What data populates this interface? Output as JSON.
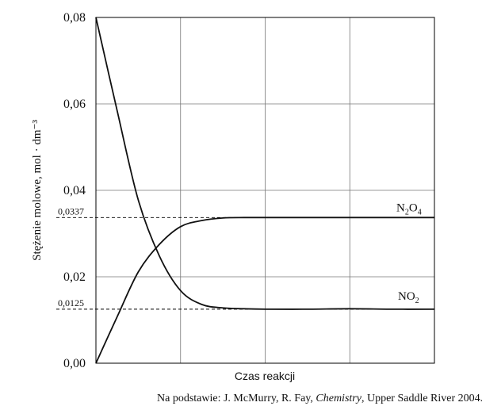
{
  "chart_data": {
    "type": "line",
    "xlabel": "Czas reakcji",
    "ylabel": "Stężenie molowe, mol · dm⁻³",
    "ylim": [
      0,
      0.08
    ],
    "xlim": [
      0,
      8
    ],
    "yticks": [
      "0,00",
      "0,02",
      "0,04",
      "0,06",
      "0,08"
    ],
    "grid": true,
    "reference_lines": [
      {
        "label": "0,0337",
        "value": 0.0337
      },
      {
        "label": "0,0125",
        "value": 0.0125
      }
    ],
    "series": [
      {
        "name": "N2O4",
        "label_main": "N",
        "label_sub1": "2",
        "label_mid": "O",
        "label_sub2": "4",
        "x": [
          0,
          0.5,
          1,
          1.5,
          2,
          2.5,
          3,
          3.5,
          4,
          5,
          6,
          7,
          8
        ],
        "values": [
          0.0,
          0.0107,
          0.0211,
          0.0275,
          0.0316,
          0.033,
          0.0336,
          0.0337,
          0.0337,
          0.0337,
          0.0337,
          0.0337,
          0.0337
        ]
      },
      {
        "name": "NO2",
        "label_main": "NO",
        "label_sub1": "2",
        "x": [
          0,
          0.5,
          1,
          1.5,
          2,
          2.5,
          3,
          3.5,
          4,
          5,
          6,
          7,
          8
        ],
        "values": [
          0.08,
          0.0585,
          0.0378,
          0.0248,
          0.0168,
          0.0136,
          0.0128,
          0.0126,
          0.0125,
          0.0125,
          0.0126,
          0.0125,
          0.0125
        ]
      }
    ]
  },
  "source": {
    "prefix": "Na podstawie: J. McMurry, R. Fay, ",
    "italic": "Chemistry",
    "suffix": ", Upper Saddle River 2004."
  }
}
